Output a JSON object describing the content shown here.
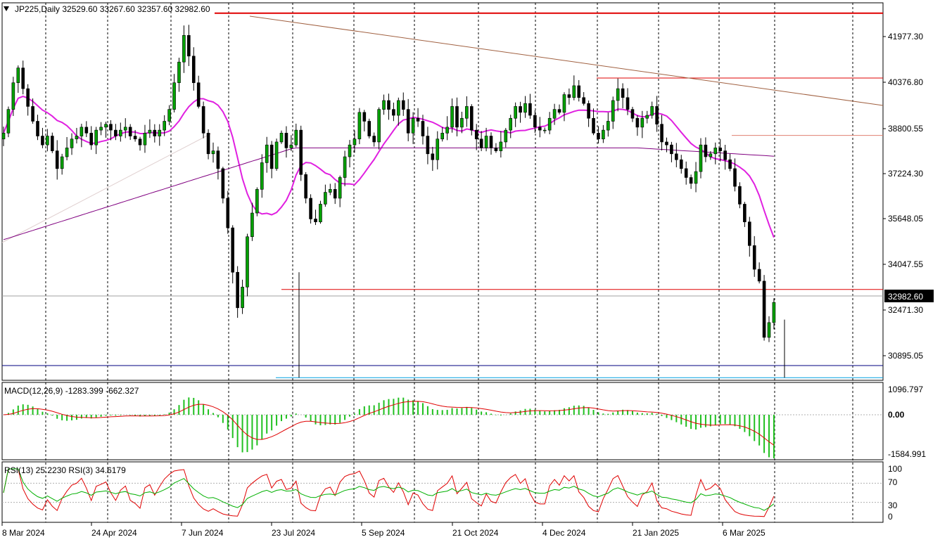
{
  "chart_data": {
    "type": "candlestick",
    "symbol": "JP225",
    "timeframe": "Daily",
    "header_text": "JP225,Daily  32529.60 33267.60 32357.60 32982.60",
    "ohlc_last": {
      "open": 32529.6,
      "high": 33267.6,
      "low": 32357.6,
      "close": 32982.6
    },
    "last_price_label": "32982.60",
    "y_ticks": [
      "41977.30",
      "40376.80",
      "38800.55",
      "37224.30",
      "35648.05",
      "34047.55",
      "32471.30",
      "30895.05"
    ],
    "y_range": [
      30350,
      43100
    ],
    "x_ticks": [
      "8 Mar 2024",
      "24 Apr 2024",
      "7 Jun 2024",
      "23 Jul 2024",
      "5 Sep 2024",
      "21 Oct 2024",
      "4 Dec 2024",
      "21 Jan 2025",
      "6 Mar 2025"
    ],
    "close_series": [
      38700,
      39500,
      40400,
      40900,
      40200,
      39600,
      39100,
      38600,
      38300,
      38600,
      38100,
      37500,
      37900,
      38200,
      38500,
      38600,
      38900,
      38700,
      38300,
      38800,
      38900,
      39000,
      38800,
      38600,
      38800,
      38900,
      38600,
      38500,
      38300,
      38700,
      38800,
      38600,
      38800,
      39100,
      39500,
      40400,
      41100,
      42000,
      41300,
      40400,
      39600,
      38700,
      38000,
      38100,
      37500,
      36500,
      35500,
      34000,
      32800,
      33500,
      35200,
      36000,
      36800,
      37700,
      38300,
      37500,
      38400,
      38700,
      38200,
      38300,
      38800,
      37300,
      36500,
      35800,
      35700,
      36300,
      36700,
      36800,
      36500,
      37200,
      37900,
      38300,
      38500,
      39400,
      39100,
      38600,
      38400,
      39500,
      39800,
      39500,
      39300,
      39800,
      39500,
      38700,
      39200,
      39100,
      38600,
      38000,
      37800,
      38500,
      38700,
      38900,
      39600,
      38900,
      39200,
      39600,
      38800,
      38500,
      38200,
      38600,
      38200,
      38100,
      38400,
      38800,
      39200,
      39600,
      39400,
      39700,
      39300,
      38900,
      38800,
      38800,
      39200,
      39500,
      39400,
      40000,
      39900,
      40300,
      39900,
      39700,
      39200,
      38700,
      38500,
      38800,
      39100,
      39800,
      40200,
      39900,
      39500,
      39200,
      38900,
      39200,
      39300,
      39600,
      39000,
      38400,
      38300,
      38000,
      37800,
      37500,
      37200,
      37000,
      37400,
      38300,
      37900,
      38000,
      38200,
      38100,
      37800,
      37500,
      36900,
      36300,
      35700,
      34900,
      34100,
      33700,
      31800,
      32300,
      32982.6
    ],
    "series": [
      {
        "name": "SMA fast",
        "color": "#e020e0"
      },
      {
        "name": "SMA slow",
        "color": "#800080"
      }
    ],
    "levels": [
      {
        "price": 42750,
        "color": "#e00000"
      },
      {
        "price": 40560,
        "color": "#e00000"
      },
      {
        "price": 38620,
        "color": "#e08070"
      },
      {
        "price": 33420,
        "color": "#e00000"
      },
      {
        "price": 30850,
        "color": "#000080"
      },
      {
        "price": 30440,
        "color": "#00a0e0"
      }
    ],
    "trendline": {
      "from": {
        "index": 34,
        "price": 42650
      },
      "to": {
        "index": 160,
        "price": 39320
      },
      "color": "#a06040"
    },
    "macd": {
      "label": "MACD(12,26,9) -1283.399 -662.327",
      "params": [
        12,
        26,
        9
      ],
      "main": -1283.399,
      "signal": -662.327,
      "y_ticks": [
        "1096.797",
        "0.00",
        "-1584.991"
      ]
    },
    "rsi": {
      "label": "RSI(13) 25.2230  RSI(3) 34.6179",
      "rsi13": 25.223,
      "rsi3": 34.6179,
      "y_ticks": [
        "100",
        "70",
        "30",
        "0"
      ]
    },
    "colors": {
      "bull": "#00a000",
      "bear": "#000000",
      "macd_hist": "#20c020",
      "macd_signal": "#e00000",
      "rsi13": "#00b000",
      "rsi3": "#e00000",
      "grid": "#000000"
    }
  }
}
